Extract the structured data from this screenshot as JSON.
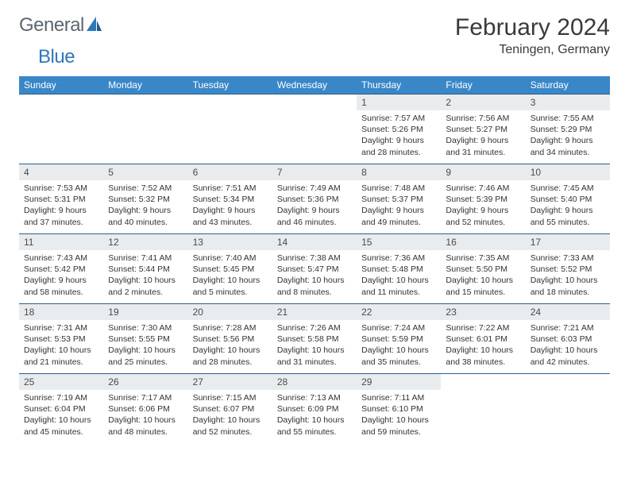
{
  "brand": {
    "part1": "General",
    "part2": "Blue"
  },
  "title": "February 2024",
  "location": "Teningen, Germany",
  "colors": {
    "header_bg": "#3a87c8",
    "header_text": "#ffffff",
    "daynum_bg": "#e9ecee",
    "daynum_border": "#2e5e8a",
    "body_text": "#333333",
    "logo_gray": "#5b6770",
    "logo_blue": "#2f78b8"
  },
  "dow": [
    "Sunday",
    "Monday",
    "Tuesday",
    "Wednesday",
    "Thursday",
    "Friday",
    "Saturday"
  ],
  "weeks": [
    [
      {
        "n": "",
        "sr": "",
        "ss": "",
        "dl": ""
      },
      {
        "n": "",
        "sr": "",
        "ss": "",
        "dl": ""
      },
      {
        "n": "",
        "sr": "",
        "ss": "",
        "dl": ""
      },
      {
        "n": "",
        "sr": "",
        "ss": "",
        "dl": ""
      },
      {
        "n": "1",
        "sr": "Sunrise: 7:57 AM",
        "ss": "Sunset: 5:26 PM",
        "dl": "Daylight: 9 hours and 28 minutes."
      },
      {
        "n": "2",
        "sr": "Sunrise: 7:56 AM",
        "ss": "Sunset: 5:27 PM",
        "dl": "Daylight: 9 hours and 31 minutes."
      },
      {
        "n": "3",
        "sr": "Sunrise: 7:55 AM",
        "ss": "Sunset: 5:29 PM",
        "dl": "Daylight: 9 hours and 34 minutes."
      }
    ],
    [
      {
        "n": "4",
        "sr": "Sunrise: 7:53 AM",
        "ss": "Sunset: 5:31 PM",
        "dl": "Daylight: 9 hours and 37 minutes."
      },
      {
        "n": "5",
        "sr": "Sunrise: 7:52 AM",
        "ss": "Sunset: 5:32 PM",
        "dl": "Daylight: 9 hours and 40 minutes."
      },
      {
        "n": "6",
        "sr": "Sunrise: 7:51 AM",
        "ss": "Sunset: 5:34 PM",
        "dl": "Daylight: 9 hours and 43 minutes."
      },
      {
        "n": "7",
        "sr": "Sunrise: 7:49 AM",
        "ss": "Sunset: 5:36 PM",
        "dl": "Daylight: 9 hours and 46 minutes."
      },
      {
        "n": "8",
        "sr": "Sunrise: 7:48 AM",
        "ss": "Sunset: 5:37 PM",
        "dl": "Daylight: 9 hours and 49 minutes."
      },
      {
        "n": "9",
        "sr": "Sunrise: 7:46 AM",
        "ss": "Sunset: 5:39 PM",
        "dl": "Daylight: 9 hours and 52 minutes."
      },
      {
        "n": "10",
        "sr": "Sunrise: 7:45 AM",
        "ss": "Sunset: 5:40 PM",
        "dl": "Daylight: 9 hours and 55 minutes."
      }
    ],
    [
      {
        "n": "11",
        "sr": "Sunrise: 7:43 AM",
        "ss": "Sunset: 5:42 PM",
        "dl": "Daylight: 9 hours and 58 minutes."
      },
      {
        "n": "12",
        "sr": "Sunrise: 7:41 AM",
        "ss": "Sunset: 5:44 PM",
        "dl": "Daylight: 10 hours and 2 minutes."
      },
      {
        "n": "13",
        "sr": "Sunrise: 7:40 AM",
        "ss": "Sunset: 5:45 PM",
        "dl": "Daylight: 10 hours and 5 minutes."
      },
      {
        "n": "14",
        "sr": "Sunrise: 7:38 AM",
        "ss": "Sunset: 5:47 PM",
        "dl": "Daylight: 10 hours and 8 minutes."
      },
      {
        "n": "15",
        "sr": "Sunrise: 7:36 AM",
        "ss": "Sunset: 5:48 PM",
        "dl": "Daylight: 10 hours and 11 minutes."
      },
      {
        "n": "16",
        "sr": "Sunrise: 7:35 AM",
        "ss": "Sunset: 5:50 PM",
        "dl": "Daylight: 10 hours and 15 minutes."
      },
      {
        "n": "17",
        "sr": "Sunrise: 7:33 AM",
        "ss": "Sunset: 5:52 PM",
        "dl": "Daylight: 10 hours and 18 minutes."
      }
    ],
    [
      {
        "n": "18",
        "sr": "Sunrise: 7:31 AM",
        "ss": "Sunset: 5:53 PM",
        "dl": "Daylight: 10 hours and 21 minutes."
      },
      {
        "n": "19",
        "sr": "Sunrise: 7:30 AM",
        "ss": "Sunset: 5:55 PM",
        "dl": "Daylight: 10 hours and 25 minutes."
      },
      {
        "n": "20",
        "sr": "Sunrise: 7:28 AM",
        "ss": "Sunset: 5:56 PM",
        "dl": "Daylight: 10 hours and 28 minutes."
      },
      {
        "n": "21",
        "sr": "Sunrise: 7:26 AM",
        "ss": "Sunset: 5:58 PM",
        "dl": "Daylight: 10 hours and 31 minutes."
      },
      {
        "n": "22",
        "sr": "Sunrise: 7:24 AM",
        "ss": "Sunset: 5:59 PM",
        "dl": "Daylight: 10 hours and 35 minutes."
      },
      {
        "n": "23",
        "sr": "Sunrise: 7:22 AM",
        "ss": "Sunset: 6:01 PM",
        "dl": "Daylight: 10 hours and 38 minutes."
      },
      {
        "n": "24",
        "sr": "Sunrise: 7:21 AM",
        "ss": "Sunset: 6:03 PM",
        "dl": "Daylight: 10 hours and 42 minutes."
      }
    ],
    [
      {
        "n": "25",
        "sr": "Sunrise: 7:19 AM",
        "ss": "Sunset: 6:04 PM",
        "dl": "Daylight: 10 hours and 45 minutes."
      },
      {
        "n": "26",
        "sr": "Sunrise: 7:17 AM",
        "ss": "Sunset: 6:06 PM",
        "dl": "Daylight: 10 hours and 48 minutes."
      },
      {
        "n": "27",
        "sr": "Sunrise: 7:15 AM",
        "ss": "Sunset: 6:07 PM",
        "dl": "Daylight: 10 hours and 52 minutes."
      },
      {
        "n": "28",
        "sr": "Sunrise: 7:13 AM",
        "ss": "Sunset: 6:09 PM",
        "dl": "Daylight: 10 hours and 55 minutes."
      },
      {
        "n": "29",
        "sr": "Sunrise: 7:11 AM",
        "ss": "Sunset: 6:10 PM",
        "dl": "Daylight: 10 hours and 59 minutes."
      },
      {
        "n": "",
        "sr": "",
        "ss": "",
        "dl": ""
      },
      {
        "n": "",
        "sr": "",
        "ss": "",
        "dl": ""
      }
    ]
  ]
}
